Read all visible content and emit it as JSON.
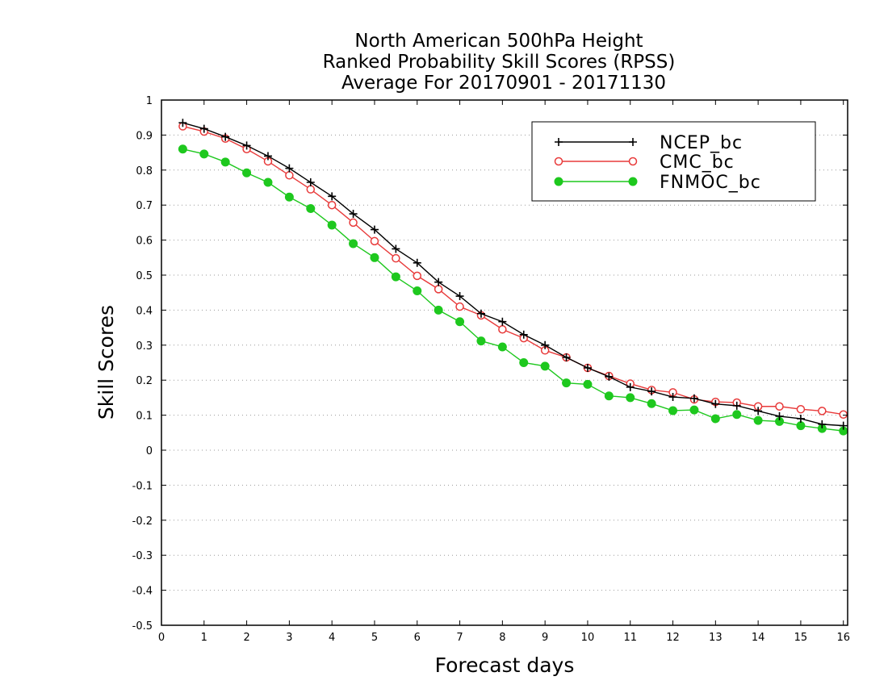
{
  "chart_data": {
    "type": "line",
    "title": [
      "North American 500hPa Height",
      "Ranked Probability Skill Scores (RPSS)",
      "Average For 20170901 - 20171130"
    ],
    "xlabel": "Forecast days",
    "ylabel": "Skill Scores",
    "xlim": [
      0,
      16.1
    ],
    "ylim": [
      -0.5,
      1
    ],
    "x_ticks": [
      "0",
      "1",
      "2",
      "3",
      "4",
      "5",
      "6",
      "7",
      "8",
      "9",
      "10",
      "11",
      "12",
      "13",
      "14",
      "15",
      "16"
    ],
    "y_ticks": [
      "-0.5",
      "-0.4",
      "-0.3",
      "-0.2",
      "-0.1",
      "0",
      "0.1",
      "0.2",
      "0.3",
      "0.4",
      "0.5",
      "0.6",
      "0.7",
      "0.8",
      "0.9",
      "1"
    ],
    "grid": "horizontal dotted",
    "legend_position": "top-right",
    "x": [
      0.5,
      1,
      1.5,
      2,
      2.5,
      3,
      3.5,
      4,
      4.5,
      5,
      5.5,
      6,
      6.5,
      7,
      7.5,
      8,
      8.5,
      9,
      9.5,
      10,
      10.5,
      11,
      11.5,
      12,
      12.5,
      13,
      13.5,
      14,
      14.5,
      15,
      15.5,
      16
    ],
    "series": [
      {
        "name": "NCEP_bc",
        "color": "#000000",
        "marker": "plus",
        "values": [
          0.935,
          0.918,
          0.895,
          0.87,
          0.84,
          0.805,
          0.765,
          0.725,
          0.675,
          0.63,
          0.575,
          0.535,
          0.48,
          0.44,
          0.39,
          0.367,
          0.33,
          0.3,
          0.265,
          0.235,
          0.21,
          0.18,
          0.168,
          0.152,
          0.148,
          0.132,
          0.127,
          0.112,
          0.097,
          0.09,
          0.074,
          0.07
        ]
      },
      {
        "name": "CMC_bc",
        "color": "#e83a3a",
        "marker": "open-circle",
        "values": [
          0.925,
          0.91,
          0.89,
          0.86,
          0.825,
          0.785,
          0.745,
          0.7,
          0.65,
          0.597,
          0.548,
          0.498,
          0.46,
          0.41,
          0.385,
          0.345,
          0.32,
          0.285,
          0.265,
          0.235,
          0.212,
          0.19,
          0.172,
          0.165,
          0.145,
          0.138,
          0.136,
          0.125,
          0.125,
          0.117,
          0.112,
          0.102
        ]
      },
      {
        "name": "FNMOC_bc",
        "color": "#1ec81e",
        "marker": "filled-circle",
        "values": [
          0.86,
          0.846,
          0.823,
          0.792,
          0.765,
          0.723,
          0.69,
          0.643,
          0.59,
          0.55,
          0.495,
          0.455,
          0.4,
          0.367,
          0.312,
          0.295,
          0.25,
          0.24,
          0.192,
          0.188,
          0.155,
          0.15,
          0.133,
          0.113,
          0.115,
          0.09,
          0.102,
          0.085,
          0.082,
          0.07,
          0.062,
          0.055
        ]
      }
    ]
  }
}
